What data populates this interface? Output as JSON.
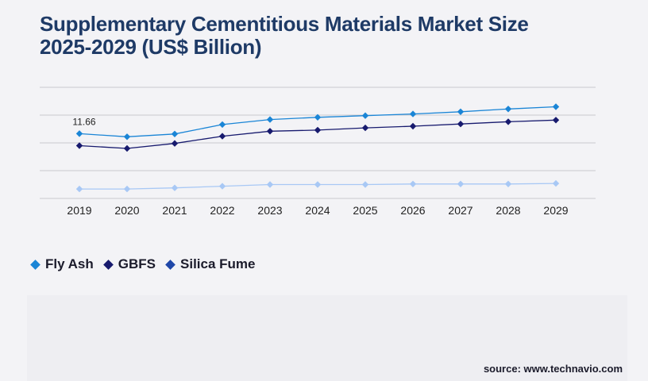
{
  "title_lines": [
    "Supplementary Cementitious Materials Market Size",
    "2025-2029 (US$ Billion)"
  ],
  "source": "source: www.technavio.com",
  "chart_data": {
    "type": "line",
    "x": [
      "2019",
      "2020",
      "2021",
      "2022",
      "2023",
      "2024",
      "2025",
      "2026",
      "2027",
      "2028",
      "2029"
    ],
    "ylim": [
      0,
      20
    ],
    "grid": true,
    "legend_position": "bottom-left",
    "annotations": [
      {
        "series": "Fly Ash",
        "x": "2019",
        "text": "11.66"
      }
    ],
    "series": [
      {
        "name": "Fly Ash",
        "color": "#1a85d6",
        "values": [
          11.66,
          11.1,
          11.6,
          13.3,
          14.2,
          14.6,
          14.9,
          15.2,
          15.6,
          16.1,
          16.5
        ]
      },
      {
        "name": "GBFS",
        "color": "#171a6e",
        "values": [
          9.5,
          9.0,
          9.9,
          11.2,
          12.1,
          12.3,
          12.7,
          13.0,
          13.4,
          13.8,
          14.1
        ]
      },
      {
        "name": "Silica Fume",
        "color": "#a8c8f5",
        "legend_color": "#1f47a8",
        "values": [
          1.7,
          1.7,
          1.9,
          2.2,
          2.5,
          2.5,
          2.5,
          2.6,
          2.6,
          2.6,
          2.7
        ]
      }
    ]
  }
}
